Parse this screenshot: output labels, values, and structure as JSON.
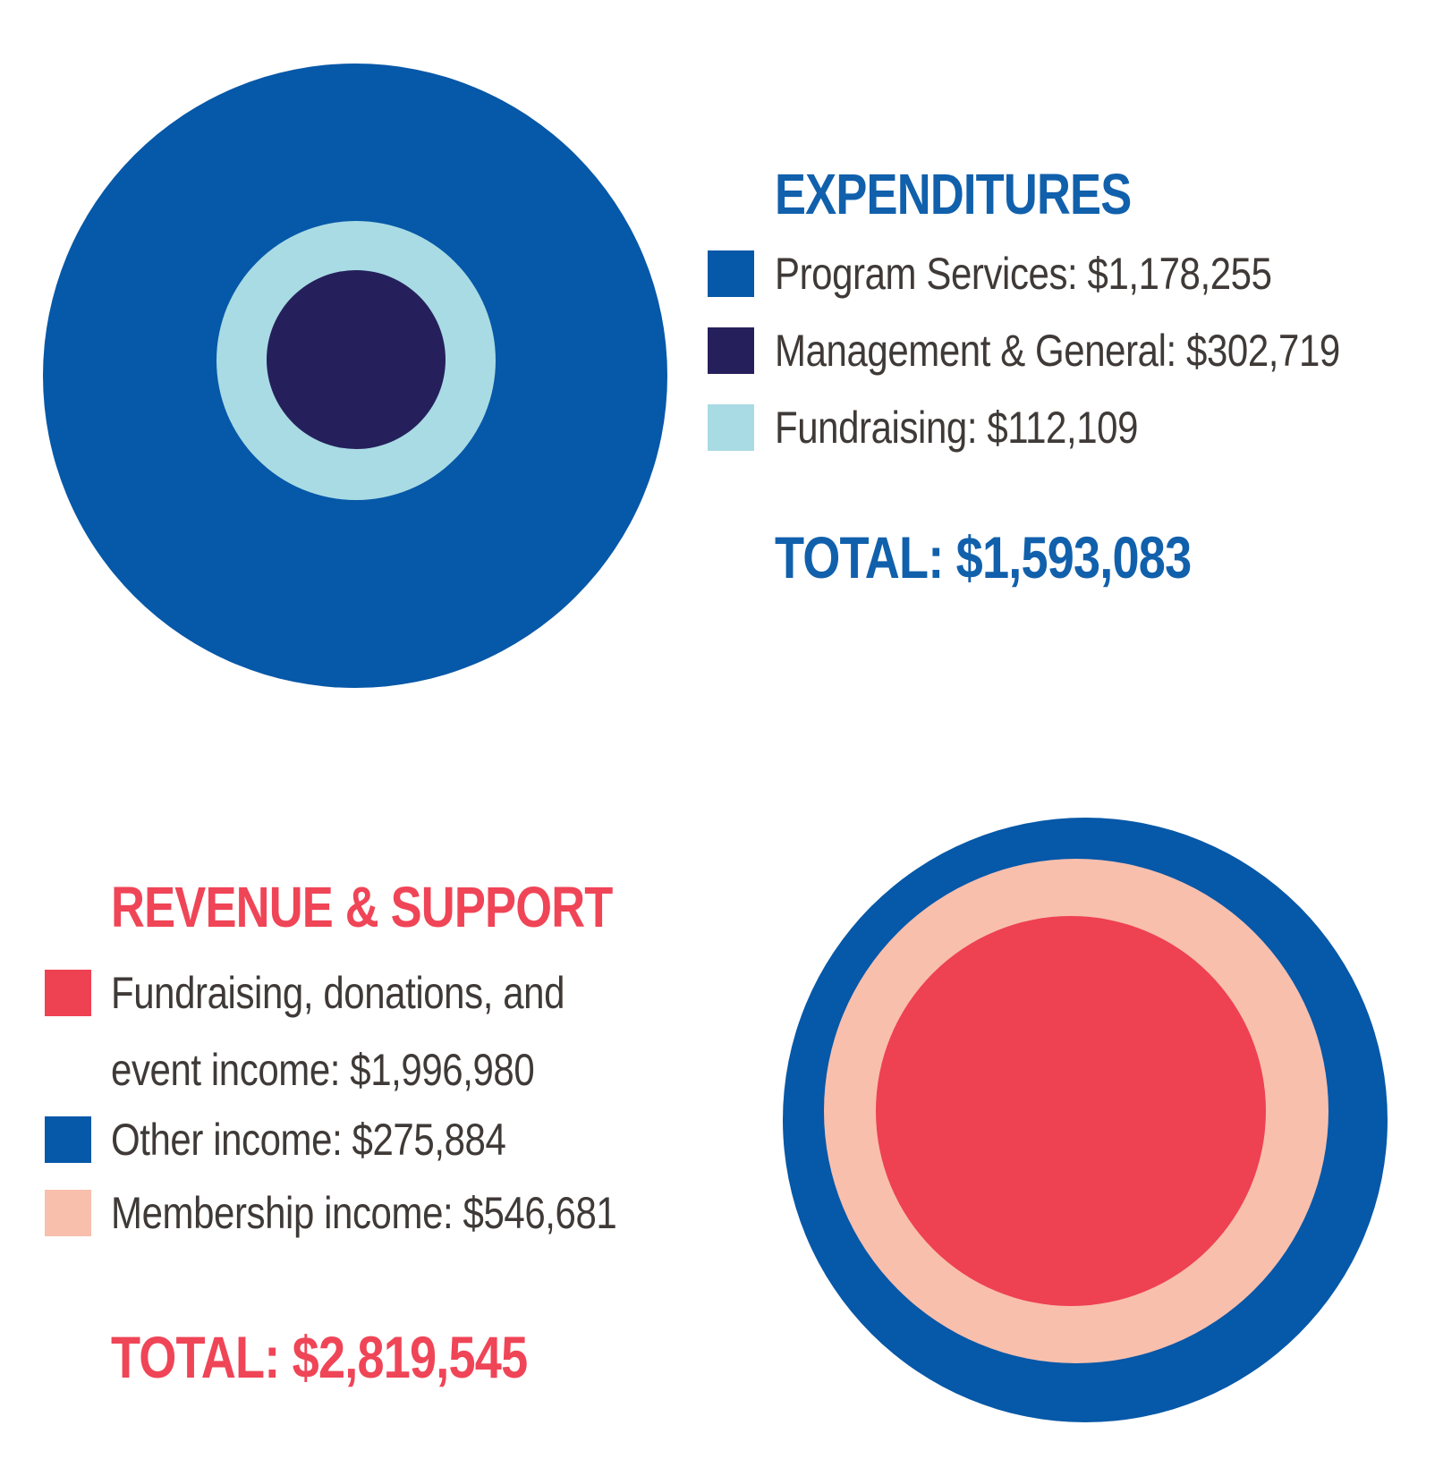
{
  "colors": {
    "blue": "#0658A8",
    "navy": "#25205C",
    "light_blue": "#A9DBE4",
    "red": "#EE4151",
    "pink": "#F8BFAD",
    "title_blue": "#1160AC",
    "title_red": "#EF4557",
    "text": "#3F3A37"
  },
  "expenditures": {
    "title": "EXPENDITURES",
    "items": [
      {
        "label": "Program Services: $1,178,255",
        "color": "#0658A8"
      },
      {
        "label": "Management & General: $302,719",
        "color": "#25205C"
      },
      {
        "label": "Fundraising: $112,109",
        "color": "#A9DBE4"
      }
    ],
    "total": "TOTAL: $1,593,083"
  },
  "revenue": {
    "title": "REVENUE & SUPPORT",
    "items": [
      {
        "label_line1": "Fundraising, donations, and",
        "label_line2": "event income: $1,996,980",
        "color": "#EE4151"
      },
      {
        "label": "Other income: $275,884",
        "color": "#0658A8"
      },
      {
        "label": "Membership income: $546,681",
        "color": "#F8BFAD"
      }
    ],
    "total": "TOTAL: $2,819,545"
  },
  "chart_data": [
    {
      "type": "pie",
      "style": "concentric-circles",
      "title": "EXPENDITURES",
      "categories": [
        "Program Services",
        "Management & General",
        "Fundraising"
      ],
      "values": [
        1178255,
        302719,
        112109
      ],
      "colors": [
        "#0658A8",
        "#25205C",
        "#A9DBE4"
      ],
      "total": 1593083,
      "total_label": "TOTAL: $1,593,083",
      "legend_position": "right",
      "ring_order_outer_to_inner": [
        "Program Services",
        "Fundraising",
        "Management & General"
      ]
    },
    {
      "type": "pie",
      "style": "concentric-circles",
      "title": "REVENUE & SUPPORT",
      "categories": [
        "Fundraising, donations, and event income",
        "Other income",
        "Membership income"
      ],
      "values": [
        1996980,
        275884,
        546681
      ],
      "colors": [
        "#EE4151",
        "#0658A8",
        "#F8BFAD"
      ],
      "total": 2819545,
      "total_label": "TOTAL: $2,819,545",
      "legend_position": "left",
      "ring_order_outer_to_inner": [
        "Other income",
        "Membership income",
        "Fundraising, donations, and event income"
      ]
    }
  ]
}
